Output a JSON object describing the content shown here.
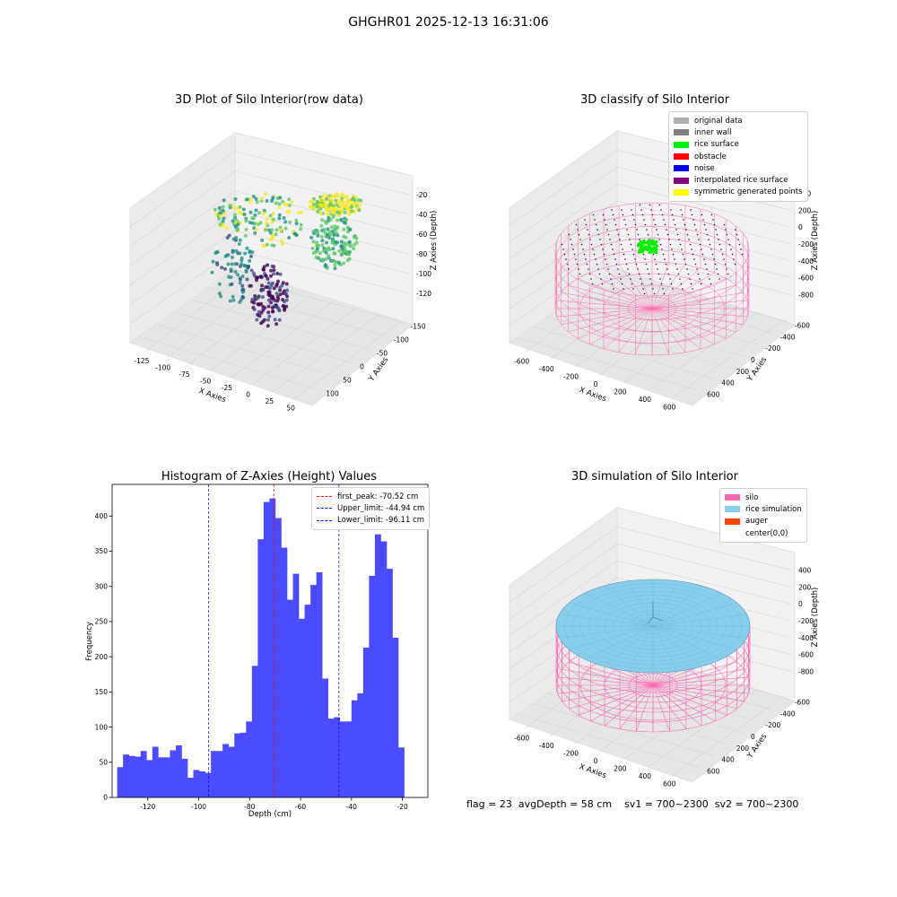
{
  "suptitle": "GHGHR01 2025-12-13 16:31:06",
  "chart_data": [
    {
      "type": "scatter",
      "projection": "3d",
      "title": "3D Plot of Silo Interior(row data)",
      "xlabel": "X Axies",
      "ylabel": "Y Axies",
      "zlabel": "Z Axies (Depth)",
      "x_ticks": [
        "-125",
        "-100",
        "-75",
        "-50",
        "-25",
        "0",
        "25",
        "50"
      ],
      "y_ticks": [
        "100",
        "50",
        "0",
        "-50",
        "-100",
        "-150"
      ],
      "z_ticks": [
        "-20",
        "-40",
        "-60",
        "-80",
        "-100",
        "-120"
      ],
      "colormap": "viridis",
      "grid": true
    },
    {
      "type": "scatter",
      "projection": "3d",
      "title": "3D classify of Silo Interior",
      "xlabel": "X Axies",
      "ylabel": "Y Axies",
      "zlabel": "Z Axies (Depth)",
      "x_ticks": [
        "-600",
        "-400",
        "-200",
        "0",
        "200",
        "400",
        "600"
      ],
      "y_ticks": [
        "600",
        "400",
        "200",
        "0",
        "-200",
        "-400",
        "-600"
      ],
      "z_ticks": [
        "400",
        "200",
        "0",
        "-200",
        "-400",
        "-600",
        "-800"
      ],
      "legend_position": "top-right",
      "legend": [
        {
          "label": "original data",
          "color": "#b0b0b0"
        },
        {
          "label": "inner wall",
          "color": "#808080"
        },
        {
          "label": "rice surface",
          "color": "#00ee00"
        },
        {
          "label": "obstacle",
          "color": "#ff0000"
        },
        {
          "label": "noise",
          "color": "#0000ee"
        },
        {
          "label": "interpolated rice surface",
          "color": "#800080"
        },
        {
          "label": "symmetric generated points",
          "color": "#ffff00"
        }
      ],
      "grid": true
    },
    {
      "type": "bar",
      "title": "Histogram of Z-Axies (Height) Values",
      "xlabel": "Depth (cm)",
      "ylabel": "Frequency",
      "xlim": [
        -134,
        -10
      ],
      "ylim": [
        0,
        445
      ],
      "x_ticks": [
        -120,
        -100,
        -80,
        -60,
        -40,
        -20
      ],
      "y_ticks": [
        0,
        50,
        100,
        150,
        200,
        250,
        300,
        350,
        400
      ],
      "bin_start": -132,
      "bin_width": 2.3,
      "bar_color": "#4b4bff",
      "values": [
        43,
        61,
        59,
        58,
        66,
        53,
        72,
        57,
        57,
        67,
        74,
        55,
        28,
        39,
        37,
        35,
        66,
        66,
        76,
        72,
        91,
        92,
        108,
        187,
        367,
        420,
        425,
        397,
        355,
        281,
        318,
        254,
        274,
        302,
        320,
        169,
        112,
        114,
        108,
        108,
        138,
        148,
        213,
        315,
        374,
        364,
        325,
        227,
        71
      ],
      "vlines": [
        {
          "label": "first_peak: -70.52 cm",
          "x": -70.52,
          "color": "#ff0000"
        },
        {
          "label": "Upper_limit: -44.94 cm",
          "x": -44.94,
          "color": "#0000ff"
        },
        {
          "label": "Lower_limit: -96.11 cm",
          "x": -96.11,
          "color": "#0000ff"
        }
      ],
      "legend_position": "top-right",
      "grid": false
    },
    {
      "type": "scatter",
      "projection": "3d",
      "title": "3D simulation of Silo Interior",
      "xlabel": "X Axies",
      "ylabel": "Y Axies",
      "zlabel": "Z Axies (Depth)",
      "x_ticks": [
        "-600",
        "-400",
        "-200",
        "0",
        "200",
        "400",
        "600"
      ],
      "y_ticks": [
        "600",
        "400",
        "200",
        "0",
        "-200",
        "-400",
        "-600"
      ],
      "z_ticks": [
        "400",
        "200",
        "0",
        "-200",
        "-400",
        "-600",
        "-800"
      ],
      "legend_position": "top-right",
      "legend": [
        {
          "label": "silo",
          "color": "#ff69b4"
        },
        {
          "label": "rice simulation",
          "color": "#87ceeb"
        },
        {
          "label": "auger",
          "color": "#ff4500"
        },
        {
          "label": "center(0,0)",
          "color": "#ffffff"
        }
      ],
      "grid": true
    }
  ],
  "footer": {
    "flag": "flag = 23",
    "avg_depth": "avgDepth = 58 cm",
    "sv1": "sv1 = 700~2300",
    "sv2": "sv2 = 700~2300"
  }
}
